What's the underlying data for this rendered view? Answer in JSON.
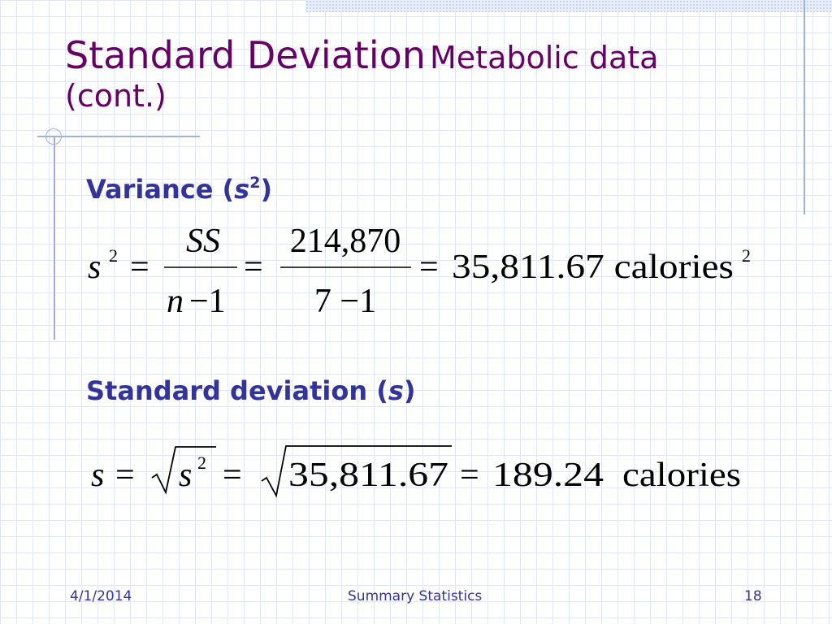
{
  "slide": {
    "title_main": "Standard Deviation",
    "title_sub": "Metabolic data (cont.)"
  },
  "variance": {
    "heading_pre": "Variance (",
    "heading_symbol": "s",
    "heading_sup": "2",
    "heading_post": ")",
    "eq": {
      "lhs": "s",
      "lhs_exp": "2",
      "eq_sign": "=",
      "num1": "SS",
      "den1_var": "n",
      "den1_rest": "−1",
      "num2": "214,870",
      "den2": "7 −1",
      "result": "35,811.67 calories",
      "result_exp": "2"
    }
  },
  "stddev": {
    "heading_pre": "Standard deviation (",
    "heading_symbol": "s",
    "heading_post": ")",
    "eq": {
      "lhs": "s",
      "eq_sign": "=",
      "radicand_var": "s",
      "radicand_exp": "2",
      "radicand2": "35,811.67",
      "result": "189.24",
      "unit": "calories"
    }
  },
  "footer": {
    "date": "4/1/2014",
    "center": "Summary Statistics",
    "page": "18"
  }
}
